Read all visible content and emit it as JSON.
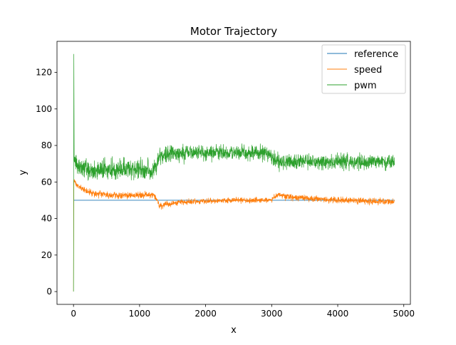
{
  "chart_data": {
    "type": "line",
    "title": "Motor Trajectory",
    "xlabel": "x",
    "ylabel": "y",
    "xlim": [
      -250,
      5100
    ],
    "ylim": [
      -7,
      137
    ],
    "xticks": [
      0,
      1000,
      2000,
      3000,
      4000,
      5000
    ],
    "yticks": [
      0,
      20,
      40,
      60,
      80,
      100,
      120
    ],
    "grid": false,
    "legend_position": "top-right",
    "series": [
      {
        "name": "reference",
        "color": "#1f77b4",
        "x": [
          0,
          4860
        ],
        "y": [
          50,
          50
        ]
      },
      {
        "name": "speed",
        "color": "#ff7f0e",
        "x": [
          0,
          5,
          10,
          30,
          100,
          200,
          300,
          500,
          800,
          1000,
          1200,
          1240,
          1260,
          1300,
          1400,
          1600,
          2000,
          2500,
          2900,
          3000,
          3060,
          3100,
          3200,
          3500,
          4000,
          4500,
          4860
        ],
        "y": [
          0,
          60,
          61,
          59,
          57,
          55,
          53.5,
          53,
          52.5,
          53,
          53,
          52,
          50,
          47,
          47.5,
          49,
          49.5,
          50,
          50,
          50.5,
          52,
          53.5,
          52,
          51,
          50,
          49.5,
          49.5
        ],
        "noise": [
          0,
          0,
          1,
          1,
          1.5,
          1.5,
          1.5,
          1.5,
          1.5,
          1.5,
          1.5,
          1.5,
          1.5,
          1.5,
          1.5,
          1.2,
          1.2,
          1.2,
          1.2,
          1.2,
          1.5,
          1.5,
          1.5,
          1.5,
          1.5,
          1.5,
          1.5
        ]
      },
      {
        "name": "pwm",
        "color": "#2ca02c",
        "x": [
          0,
          5,
          10,
          20,
          30,
          100,
          300,
          600,
          1000,
          1200,
          1260,
          1300,
          1400,
          1800,
          2200,
          2600,
          2900,
          3000,
          3100,
          3300,
          3600,
          4000,
          4500,
          4860
        ],
        "y": [
          0,
          130,
          75,
          72,
          70,
          68,
          66,
          67,
          67,
          66,
          70,
          74,
          75,
          76,
          76,
          76,
          76,
          74,
          71,
          71,
          71,
          71,
          71,
          71
        ],
        "noise": [
          0,
          0,
          4,
          4,
          4,
          4.5,
          4.5,
          4.5,
          4.5,
          4.5,
          4.5,
          4,
          4,
          3.5,
          3.5,
          3.5,
          3.5,
          4,
          4,
          3.5,
          3.5,
          3.5,
          3.5,
          3.5
        ]
      }
    ]
  }
}
